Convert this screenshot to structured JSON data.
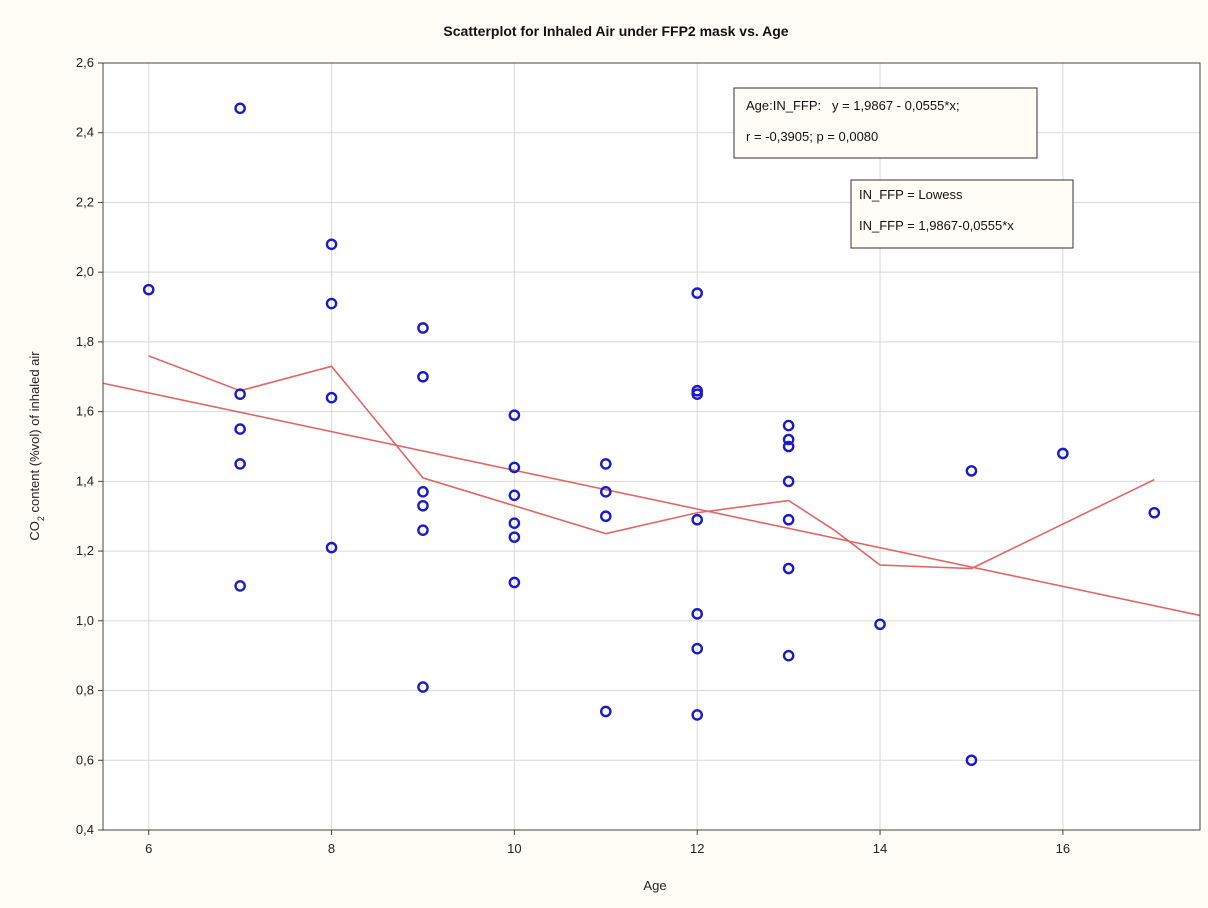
{
  "chart_data": {
    "type": "scatter",
    "title": "Scatterplot for Inhaled Air under FFP2 mask vs. Age",
    "xlabel": "Age",
    "ylabel": "CO2 content (%vol) of inhaled air",
    "ylabel_parts": {
      "pre": "CO",
      "sub": "2",
      "post": " content (%vol) of inhaled air"
    },
    "xlim": [
      5.5,
      17.5
    ],
    "ylim": [
      0.4,
      2.6
    ],
    "x_ticks": [
      6,
      8,
      10,
      12,
      14,
      16
    ],
    "x_tick_labels": [
      "6",
      "8",
      "10",
      "12",
      "14",
      "16"
    ],
    "y_ticks": [
      0.4,
      0.6,
      0.8,
      1.0,
      1.2,
      1.4,
      1.6,
      1.8,
      2.0,
      2.2,
      2.4,
      2.6
    ],
    "y_tick_labels": [
      "0,4",
      "0,6",
      "0,8",
      "1,0",
      "1,2",
      "1,4",
      "1,6",
      "1,8",
      "2,0",
      "2,2",
      "2,4",
      "2,6"
    ],
    "grid": true,
    "points": [
      {
        "x": 6,
        "y": 1.95
      },
      {
        "x": 7,
        "y": 2.47
      },
      {
        "x": 7,
        "y": 1.65
      },
      {
        "x": 7,
        "y": 1.55
      },
      {
        "x": 7,
        "y": 1.45
      },
      {
        "x": 7,
        "y": 1.1
      },
      {
        "x": 8,
        "y": 2.08
      },
      {
        "x": 8,
        "y": 1.91
      },
      {
        "x": 8,
        "y": 1.64
      },
      {
        "x": 8,
        "y": 1.21
      },
      {
        "x": 9,
        "y": 1.84
      },
      {
        "x": 9,
        "y": 1.7
      },
      {
        "x": 9,
        "y": 1.37
      },
      {
        "x": 9,
        "y": 1.33
      },
      {
        "x": 9,
        "y": 1.26
      },
      {
        "x": 9,
        "y": 0.81
      },
      {
        "x": 10,
        "y": 1.59
      },
      {
        "x": 10,
        "y": 1.44
      },
      {
        "x": 10,
        "y": 1.36
      },
      {
        "x": 10,
        "y": 1.28
      },
      {
        "x": 10,
        "y": 1.24
      },
      {
        "x": 10,
        "y": 1.11
      },
      {
        "x": 11,
        "y": 1.45
      },
      {
        "x": 11,
        "y": 1.37
      },
      {
        "x": 11,
        "y": 1.3
      },
      {
        "x": 11,
        "y": 0.74
      },
      {
        "x": 12,
        "y": 1.94
      },
      {
        "x": 12,
        "y": 1.66
      },
      {
        "x": 12,
        "y": 1.65
      },
      {
        "x": 12,
        "y": 1.29
      },
      {
        "x": 12,
        "y": 1.02
      },
      {
        "x": 12,
        "y": 0.92
      },
      {
        "x": 12,
        "y": 0.73
      },
      {
        "x": 13,
        "y": 1.56
      },
      {
        "x": 13,
        "y": 1.52
      },
      {
        "x": 13,
        "y": 1.5
      },
      {
        "x": 13,
        "y": 1.4
      },
      {
        "x": 13,
        "y": 1.29
      },
      {
        "x": 13,
        "y": 1.15
      },
      {
        "x": 13,
        "y": 0.9
      },
      {
        "x": 14,
        "y": 0.99
      },
      {
        "x": 15,
        "y": 1.43
      },
      {
        "x": 15,
        "y": 0.6
      },
      {
        "x": 16,
        "y": 1.48
      },
      {
        "x": 17,
        "y": 1.31
      }
    ],
    "point_color": "#1a1ac8",
    "regression": {
      "intercept": 1.9867,
      "slope": -0.0555,
      "color": "#e06666"
    },
    "lowess": [
      {
        "x": 6,
        "y": 1.76
      },
      {
        "x": 7,
        "y": 1.66
      },
      {
        "x": 8,
        "y": 1.73
      },
      {
        "x": 9,
        "y": 1.41
      },
      {
        "x": 10,
        "y": 1.33
      },
      {
        "x": 11,
        "y": 1.25
      },
      {
        "x": 12,
        "y": 1.31
      },
      {
        "x": 13,
        "y": 1.345
      },
      {
        "x": 13.5,
        "y": 1.26
      },
      {
        "x": 14,
        "y": 1.16
      },
      {
        "x": 15,
        "y": 1.15
      },
      {
        "x": 17,
        "y": 1.405
      }
    ],
    "annotations": {
      "equation_line1": "Age:IN_FFP:   y = 1,9867 - 0,0555*x;",
      "equation_line2": "r = -0,3905; p = 0,0080",
      "legend_line1": "IN_FFP = Lowess",
      "legend_line2": "IN_FFP = 1,9867-0,0555*x"
    }
  }
}
